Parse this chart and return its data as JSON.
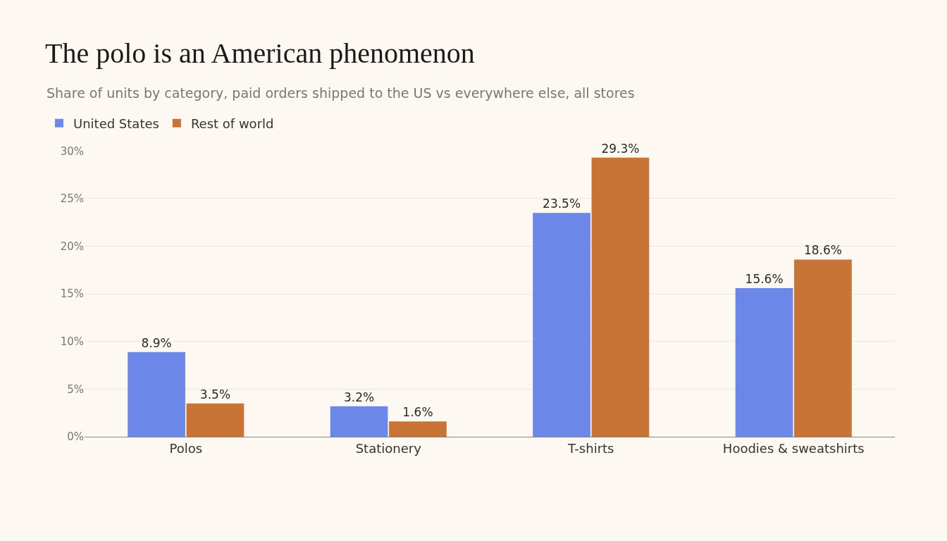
{
  "chart_data": {
    "type": "bar",
    "title": "The polo is an American phenomenon",
    "subtitle": "Share of units by category, paid orders shipped to the US vs everywhere else, all stores",
    "categories": [
      "Polos",
      "Stationery",
      "T-shirts",
      "Hoodies & sweatshirts"
    ],
    "series": [
      {
        "name": "United States",
        "color": "#6b87e8",
        "values": [
          8.9,
          3.2,
          23.5,
          15.6
        ],
        "value_labels": [
          "8.9%",
          "3.2%",
          "23.5%",
          "15.6%"
        ]
      },
      {
        "name": "Rest of world",
        "color": "#c87436",
        "values": [
          3.5,
          1.6,
          29.3,
          18.6
        ],
        "value_labels": [
          "3.5%",
          "1.6%",
          "29.3%",
          "18.6%"
        ]
      }
    ],
    "ylim": [
      0,
      30
    ],
    "yticks": [
      {
        "value": 0,
        "label": "0%"
      },
      {
        "value": 5,
        "label": "5%"
      },
      {
        "value": 10,
        "label": "10%"
      },
      {
        "value": 15,
        "label": "15%"
      },
      {
        "value": 20,
        "label": "20%"
      },
      {
        "value": 25,
        "label": "25%"
      },
      {
        "value": 30,
        "label": "30%"
      }
    ],
    "grid": "y",
    "legend": "top left"
  }
}
